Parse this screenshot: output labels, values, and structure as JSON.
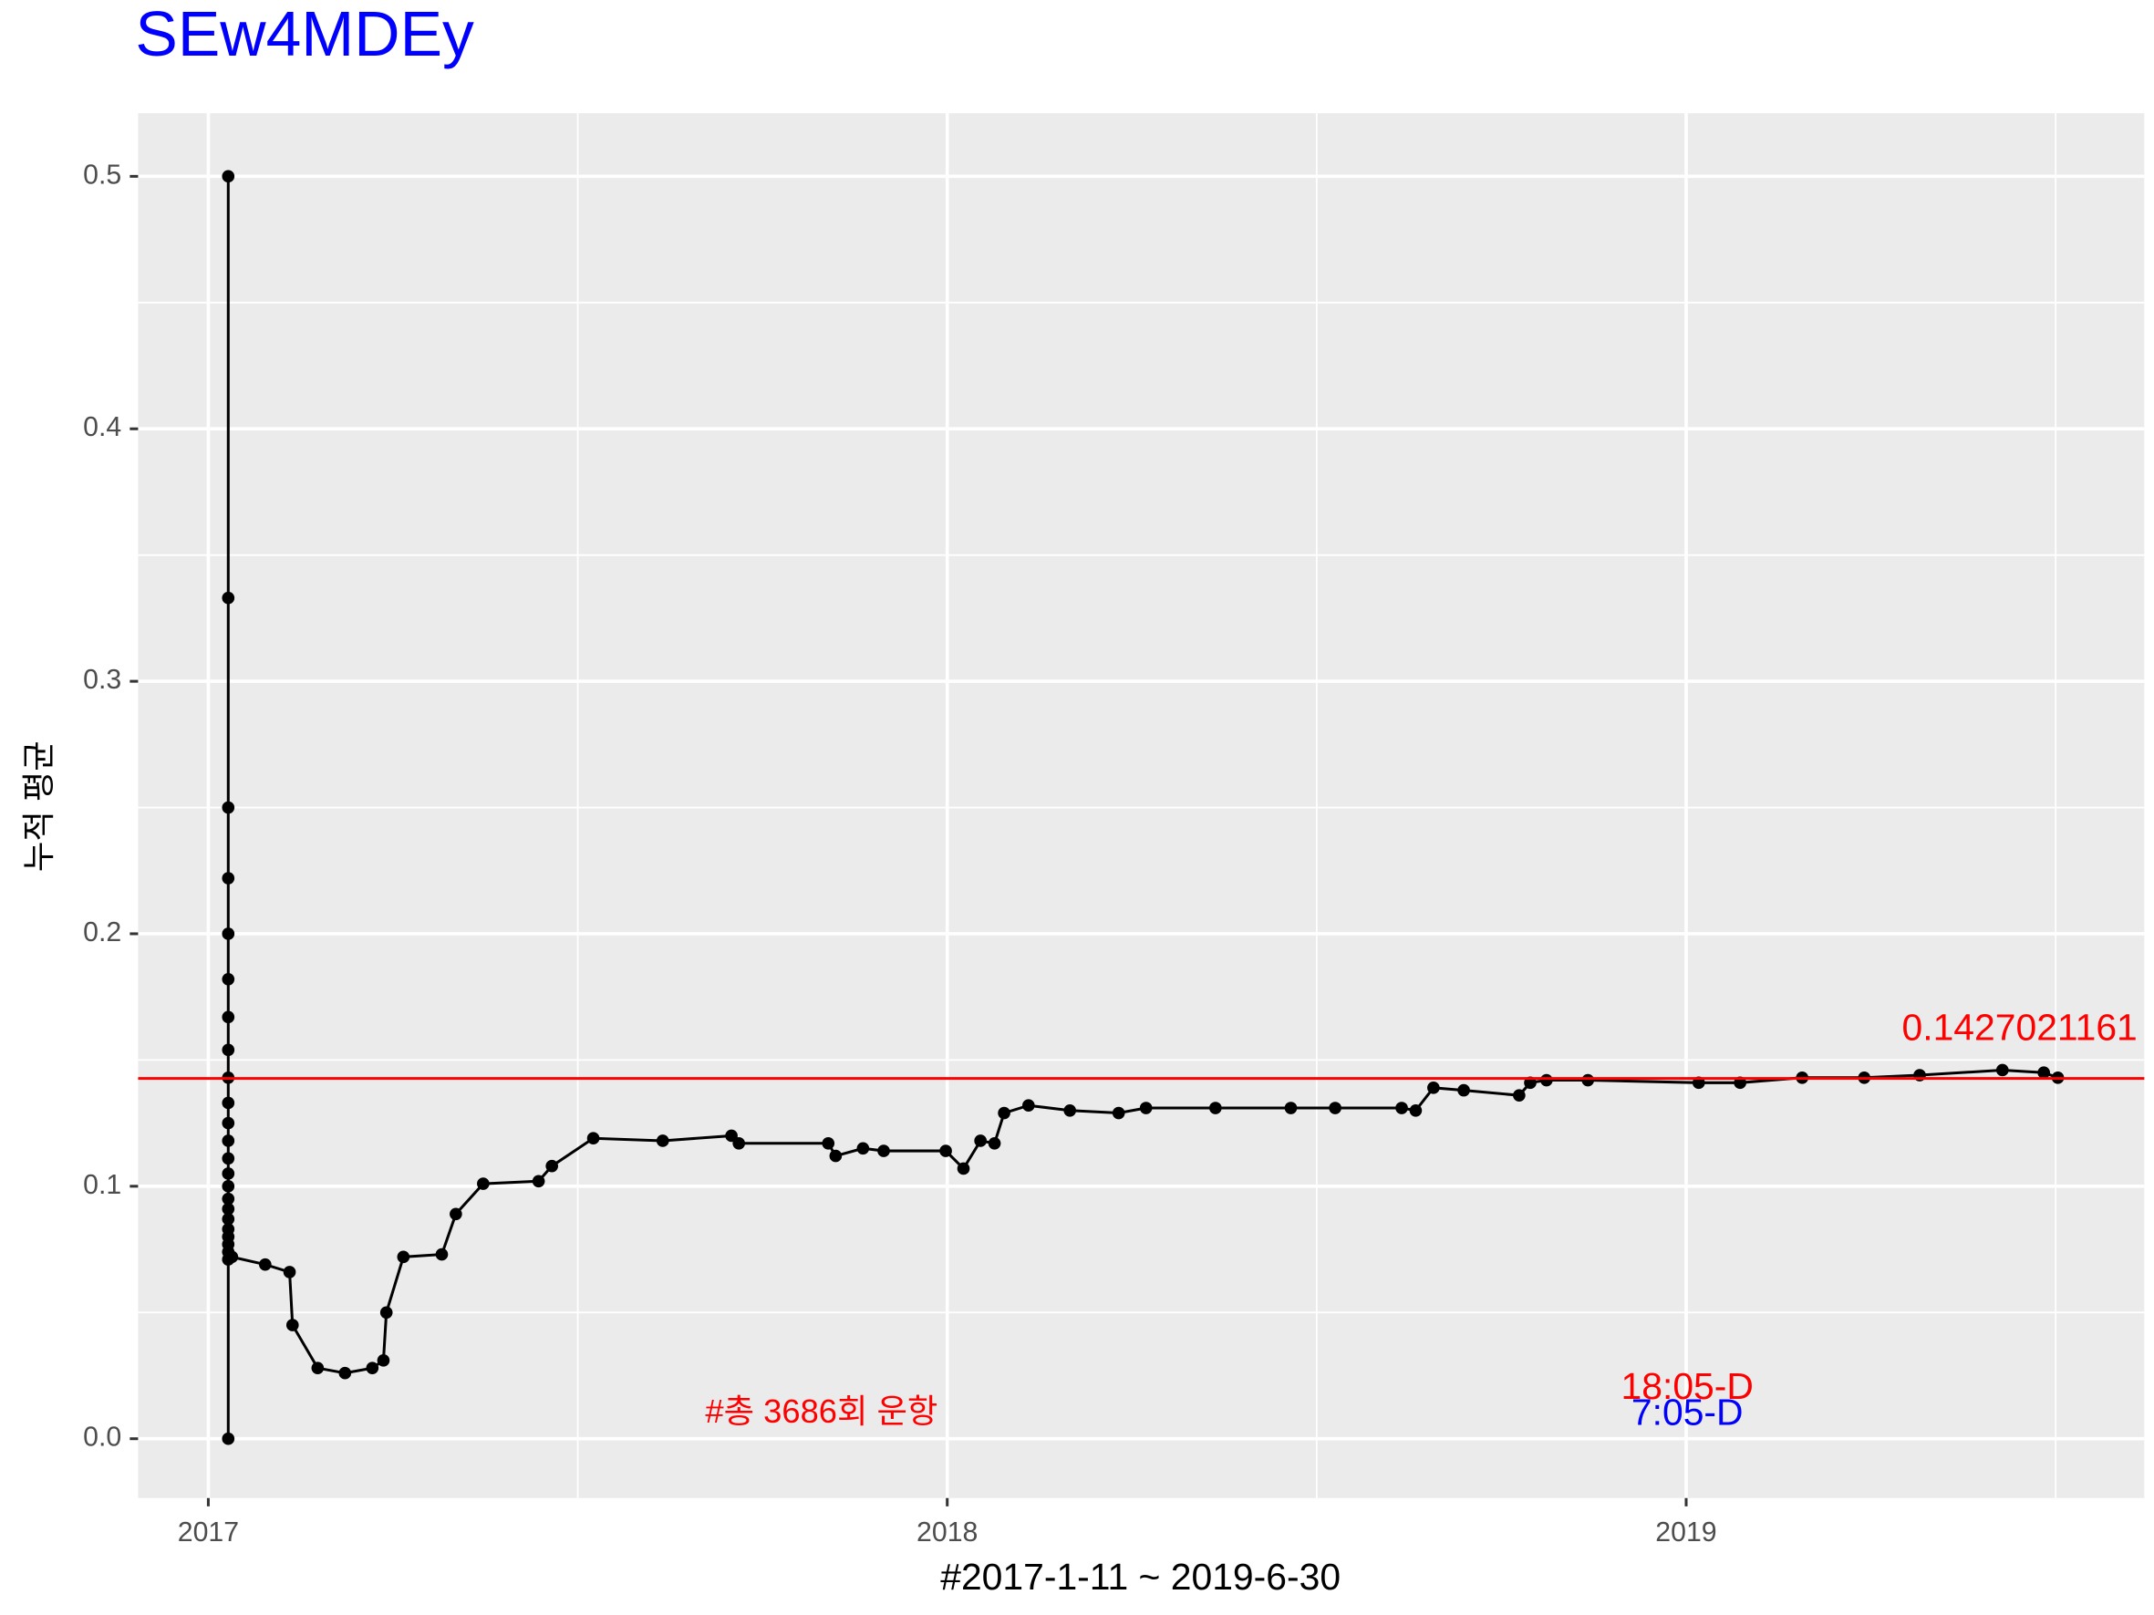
{
  "chart_data": {
    "type": "line",
    "title": "SEw4MDEy",
    "x_label": "#2017-1-11 ~ 2019-6-30",
    "y_label": "누적 평균",
    "xlim": [
      2016.905,
      2019.62
    ],
    "ylim": [
      -0.0235,
      0.525
    ],
    "xticks": [
      2017,
      2018,
      2019
    ],
    "xminor": [
      2017.5,
      2018.5,
      2019.5
    ],
    "yticks": [
      {
        "value": 0,
        "label": "0.0"
      },
      0.1,
      0.2,
      0.3,
      0.4,
      0.5
    ],
    "yminor": [
      0.05,
      0.15,
      0.25,
      0.35,
      0.45
    ],
    "grid": true,
    "hline": 0.1427021161,
    "hline_color": "#ff0000",
    "annotations": [
      "#총 3686회 운항",
      "18:05-D",
      "7:05-D"
    ],
    "series": [
      {
        "color": "#000000",
        "x": [
          2017.027,
          2017.027,
          2017.027,
          2017.027,
          2017.027,
          2017.027,
          2017.027,
          2017.027,
          2017.027,
          2017.027,
          2017.027,
          2017.027,
          2017.027,
          2017.027,
          2017.027,
          2017.027,
          2017.027,
          2017.027,
          2017.027,
          2017.027,
          2017.027,
          2017.027,
          2017.027,
          2017.027,
          2017.032,
          2017.077,
          2017.11,
          2017.114,
          2017.148,
          2017.185,
          2017.222,
          2017.237,
          2017.241,
          2017.264,
          2017.316,
          2017.335,
          2017.372,
          2017.447,
          2017.465,
          2017.521,
          2017.615,
          2017.708,
          2017.718,
          2017.839,
          2017.849,
          2017.886,
          2017.914,
          2017.998,
          2018.022,
          2018.045,
          2018.064,
          2018.077,
          2018.11,
          2018.166,
          2018.232,
          2018.269,
          2018.363,
          2018.465,
          2018.525,
          2018.615,
          2018.634,
          2018.658,
          2018.699,
          2018.774,
          2018.789,
          2018.811,
          2018.867,
          2019.017,
          2019.073,
          2019.157,
          2019.241,
          2019.316,
          2019.428,
          2019.484,
          2019.503
        ],
        "values": [
          0,
          0.5,
          0.333,
          0.25,
          0.222,
          0.2,
          0.182,
          0.167,
          0.154,
          0.143,
          0.133,
          0.125,
          0.118,
          0.111,
          0.105,
          0.1,
          0.095,
          0.091,
          0.087,
          0.083,
          0.08,
          0.077,
          0.074,
          0.071,
          0.072,
          0.069,
          0.066,
          0.045,
          0.028,
          0.026,
          0.028,
          0.031,
          0.05,
          0.072,
          0.073,
          0.089,
          0.101,
          0.102,
          0.108,
          0.119,
          0.118,
          0.12,
          0.117,
          0.117,
          0.112,
          0.115,
          0.114,
          0.114,
          0.107,
          0.118,
          0.117,
          0.129,
          0.132,
          0.13,
          0.129,
          0.131,
          0.131,
          0.131,
          0.131,
          0.131,
          0.13,
          0.139,
          0.138,
          0.136,
          0.141,
          0.142,
          0.142,
          0.141,
          0.141,
          0.143,
          0.143,
          0.144,
          0.146,
          0.145,
          0.143
        ]
      }
    ]
  }
}
